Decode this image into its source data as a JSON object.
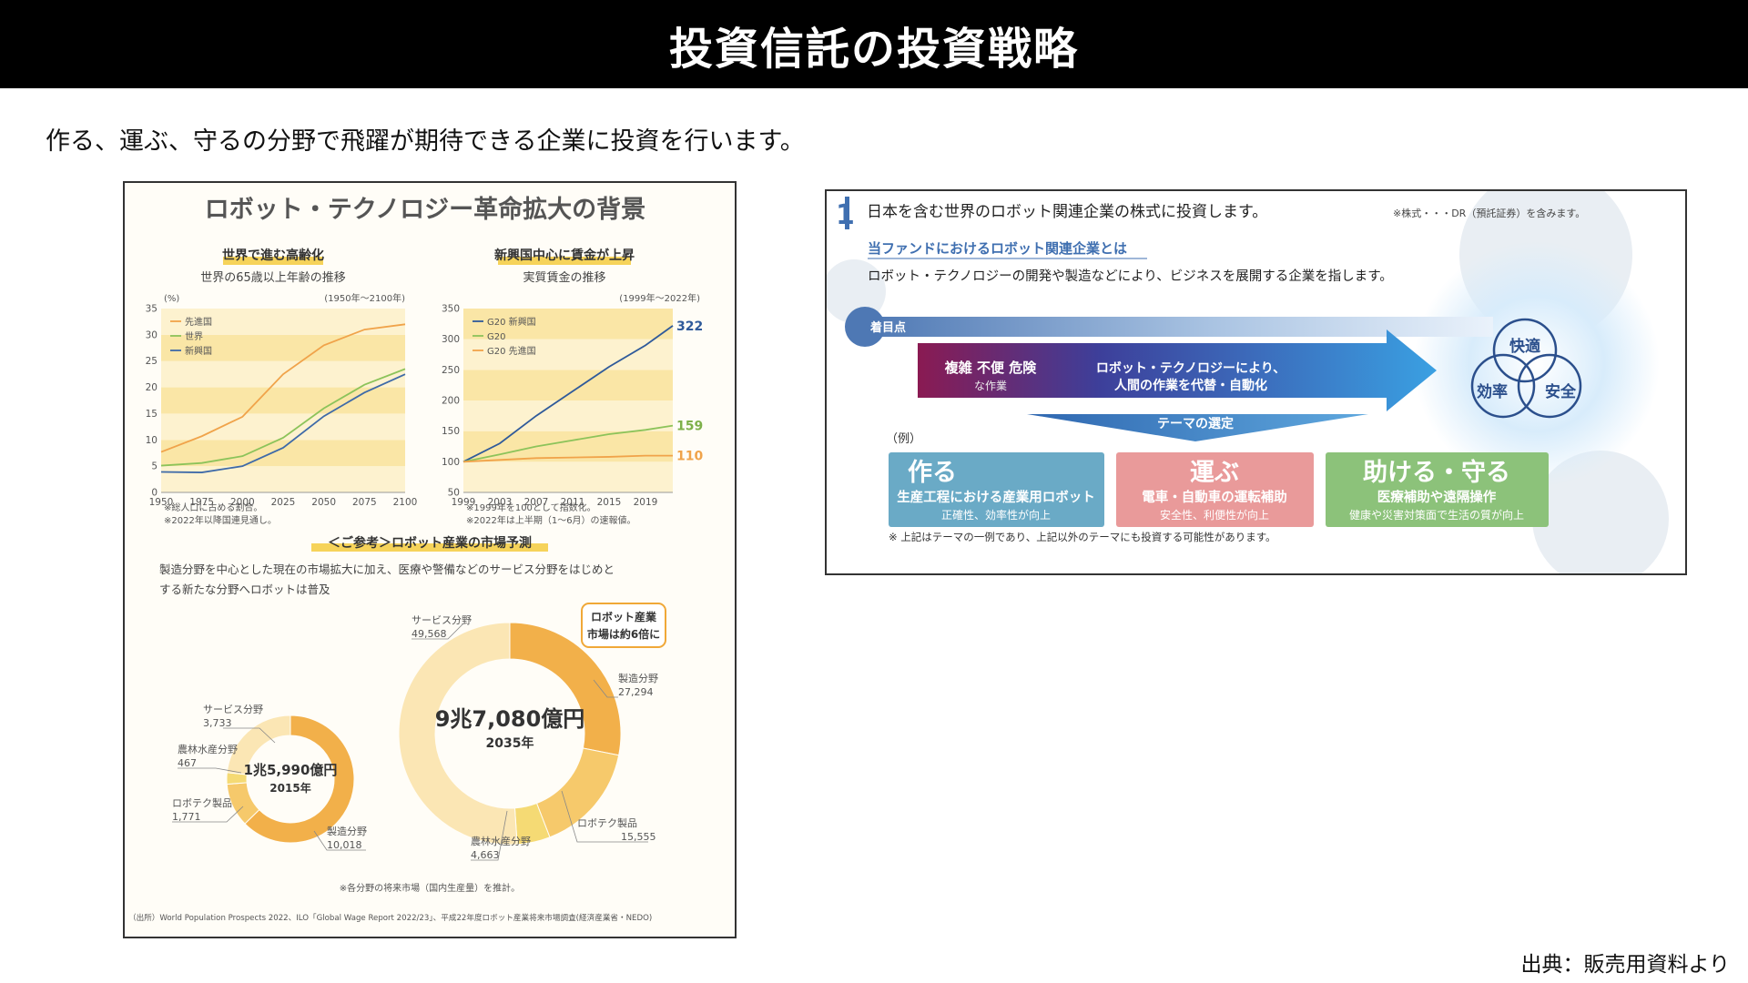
{
  "header": {
    "title": "投資信託の投資戦略"
  },
  "subtitle": "作る、運ぶ、守るの分野で飛躍が期待できる企業に投資を行います。",
  "source_note": "出典：販売用資料より",
  "left_panel": {
    "title": "ロボット・テクノロジー革命拡大の背景",
    "aging": {
      "heading": "世界で進む高齢化",
      "subheading": "世界の65歳以上年齢の推移",
      "unit": "(%)",
      "period": "(1950年～2100年)",
      "legend": [
        "先進国",
        "世界",
        "新興国"
      ],
      "y_ticks": [
        "35",
        "30",
        "25",
        "20",
        "15",
        "10",
        "5",
        "0"
      ],
      "x_ticks": [
        "1950",
        "1975",
        "2000",
        "2025",
        "2050",
        "2075",
        "2100"
      ],
      "notes": [
        "※総人口に占める割合。",
        "※2022年以降国連見通し。"
      ]
    },
    "wages": {
      "heading": "新興国中心に賃金が上昇",
      "subheading": "実質賃金の推移",
      "period": "(1999年～2022年)",
      "legend": [
        "G20 新興国",
        "G20",
        "G20 先進国"
      ],
      "y_ticks": [
        "350",
        "300",
        "250",
        "200",
        "150",
        "100",
        "50"
      ],
      "x_ticks": [
        "1999",
        "2003",
        "2007",
        "2011",
        "2015",
        "2019"
      ],
      "end_labels": [
        "322",
        "159",
        "110"
      ],
      "notes": [
        "※1999年を100として指数化。",
        "※2022年は上半期（1～6月）の速報値。"
      ]
    },
    "market": {
      "heading": "＜ご参考＞ロボット産業の市場予測",
      "description_1": "製造分野を中心とした現在の市場拡大に加え、医療や警備などのサービス分野をはじめと",
      "description_2": "する新たな分野へロボットは普及",
      "callout_1": "ロボット産業",
      "callout_2": "市場は約6倍に",
      "small_center_1": "1兆5,990億円",
      "small_center_2": "2015年",
      "big_center_1": "9兆7,080億円",
      "big_center_2": "2035年",
      "small_labels": [
        {
          "name": "サービス分野",
          "value": "3,733"
        },
        {
          "name": "農林水産分野",
          "value": "467"
        },
        {
          "name": "ロボテク製品",
          "value": "1,771"
        },
        {
          "name": "製造分野",
          "value": "10,018"
        }
      ],
      "big_labels": [
        {
          "name": "サービス分野",
          "value": "49,568"
        },
        {
          "name": "製造分野",
          "value": "27,294"
        },
        {
          "name": "ロボテク製品",
          "value": "15,555"
        },
        {
          "name": "農林水産分野",
          "value": "4,663"
        }
      ],
      "footnote": "※各分野の将来市場（国内生産量）を推計。"
    },
    "source": "（出所）World Population Prospects 2022、ILO「Global Wage Report 2022/23」、平成22年度ロボット産業将来市場調査(経済産業省・NEDO)"
  },
  "right_panel": {
    "number": "1",
    "headline": "日本を含む世界のロボット関連企業の株式に投資します。",
    "headline_note": "※株式・・・DR（預託証券）を含みます。",
    "definition_title": "当ファンドにおけるロボット関連企業とは",
    "definition_text": "ロボット・テクノロジーの開発や製造などにより、ビジネスを展開する企業を指します。",
    "focus_label": "着目点",
    "arrow_left_1": "複雑 不便 危険",
    "arrow_left_2": "な作業",
    "arrow_right_1": "ロボット・テクノロジーにより、",
    "arrow_right_2": "人間の作業を代替・自動化",
    "theme_label": "テーマの選定",
    "example_label": "（例）",
    "venn": [
      "快適",
      "効率",
      "安全"
    ],
    "themes": [
      {
        "title": "作る",
        "line1": "生産工程における産業用ロボット",
        "line2": "正確性、効率性が向上"
      },
      {
        "title": "運ぶ",
        "line1": "電車・自動車の運転補助",
        "line2": "安全性、利便性が向上"
      },
      {
        "title": "助ける・守る",
        "line1": "医療補助や遠隔操作",
        "line2": "健康や災害対策面で生活の質が向上"
      }
    ],
    "disclaimer": "※ 上記はテーマの一例であり、上記以外のテーマにも投資する可能性があります。"
  },
  "chart_data": [
    {
      "type": "line",
      "title": "世界の65歳以上年齢の推移",
      "xlabel": "",
      "ylabel": "(%)",
      "xlim": [
        1950,
        2100
      ],
      "ylim": [
        0,
        35
      ],
      "x": [
        1950,
        1975,
        2000,
        2025,
        2050,
        2075,
        2100
      ],
      "series": [
        {
          "name": "先進国",
          "values": [
            7.7,
            10.7,
            14.4,
            22.5,
            28,
            31,
            32
          ]
        },
        {
          "name": "世界",
          "values": [
            5.1,
            5.6,
            6.9,
            10.4,
            16,
            20.5,
            23.5
          ]
        },
        {
          "name": "新興国",
          "values": [
            3.9,
            3.8,
            5,
            8.5,
            14.5,
            19,
            22.5
          ]
        }
      ]
    },
    {
      "type": "line",
      "title": "実質賃金の推移",
      "xlabel": "",
      "ylabel": "",
      "xlim": [
        1999,
        2022
      ],
      "ylim": [
        50,
        350
      ],
      "x": [
        1999,
        2003,
        2007,
        2011,
        2015,
        2019,
        2022
      ],
      "series": [
        {
          "name": "G20 新興国",
          "values": [
            100,
            130,
            175,
            215,
            255,
            290,
            322
          ]
        },
        {
          "name": "G20",
          "values": [
            100,
            112,
            125,
            135,
            145,
            152,
            159
          ]
        },
        {
          "name": "G20 先進国",
          "values": [
            100,
            103,
            106,
            107,
            108,
            110,
            110
          ]
        }
      ]
    },
    {
      "type": "pie",
      "title": "2015年",
      "categories": [
        "製造分野",
        "ロボテク製品",
        "農林水産分野",
        "サービス分野"
      ],
      "values": [
        10018,
        1771,
        467,
        3733
      ],
      "colors": [
        "#f2b04a",
        "#f6c96b",
        "#f5da74",
        "#fbe6b4"
      ]
    },
    {
      "type": "pie",
      "title": "2035年",
      "categories": [
        "製造分野",
        "ロボテク製品",
        "農林水産分野",
        "サービス分野"
      ],
      "values": [
        27294,
        15555,
        4663,
        49568
      ],
      "colors": [
        "#f2b04a",
        "#f6c96b",
        "#f5da74",
        "#fbe6b4"
      ]
    }
  ]
}
